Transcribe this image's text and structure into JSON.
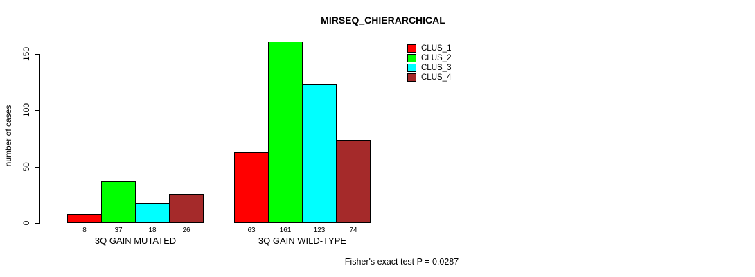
{
  "chart_data": {
    "type": "bar",
    "title": "MIRSEQ_CHIERARCHICAL",
    "ylabel": "number of cases",
    "xlabel": "",
    "yticks": [
      0,
      50,
      100,
      150
    ],
    "ylim": [
      0,
      165
    ],
    "categories": [
      "3Q GAIN MUTATED",
      "3Q GAIN WILD-TYPE"
    ],
    "series": [
      {
        "name": "CLUS_1",
        "color": "#ff0000",
        "values": [
          8,
          63
        ]
      },
      {
        "name": "CLUS_2",
        "color": "#00ff00",
        "values": [
          37,
          161
        ]
      },
      {
        "name": "CLUS_3",
        "color": "#00ffff",
        "values": [
          18,
          123
        ]
      },
      {
        "name": "CLUS_4",
        "color": "#a52a2a",
        "values": [
          26,
          74
        ]
      }
    ],
    "bar_value_labels": [
      [
        8,
        37,
        18,
        26
      ],
      [
        63,
        161,
        123,
        74
      ]
    ],
    "legend": {
      "position": "top-right",
      "entries": [
        "CLUS_1",
        "CLUS_2",
        "CLUS_3",
        "CLUS_4"
      ]
    },
    "annotation": "Fisher's exact test P = 0.0287",
    "grid": false,
    "bar_border_color": "#000000",
    "background": "#ffffff"
  }
}
